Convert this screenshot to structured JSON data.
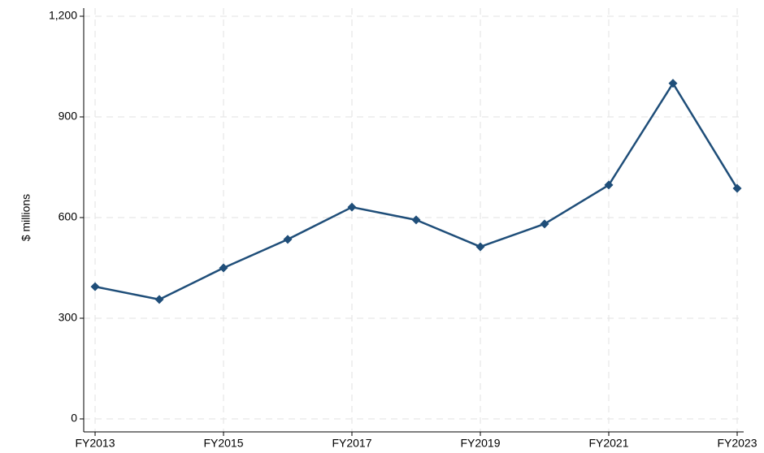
{
  "chart_data": {
    "type": "line",
    "y_label": "$ millions",
    "categories": [
      "FY2013",
      null,
      "FY2015",
      null,
      "FY2017",
      null,
      "FY2019",
      null,
      "FY2021",
      null,
      "FY2023"
    ],
    "series": [
      {
        "color": "#1f4e79",
        "values": [
          394,
          356,
          450,
          535,
          631,
          593,
          513,
          581,
          697,
          1000,
          687
        ]
      }
    ],
    "ylim": [
      0,
      1200
    ],
    "yticks": [
      0,
      300,
      600,
      900,
      {
        "value": 1200,
        "label": "1,200"
      }
    ],
    "grid": true
  }
}
